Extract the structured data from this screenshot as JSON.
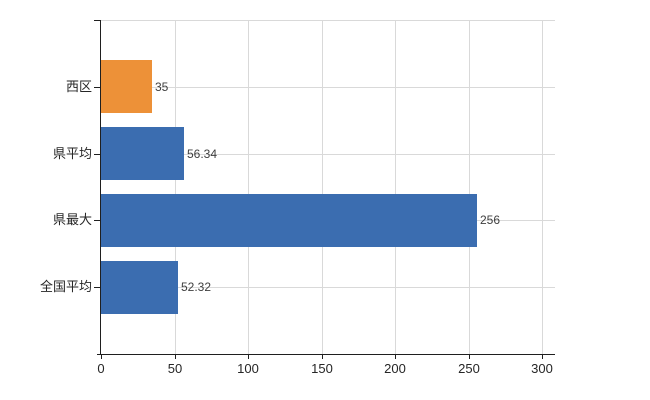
{
  "chart": {
    "background_color": "#ffffff",
    "axis_color": "#1f1f1f",
    "grid_color": "#d9d9d9",
    "tick_label_color": "#262626",
    "value_label_color": "#3f3f3f"
  },
  "chart_data": {
    "type": "bar",
    "orientation": "horizontal",
    "categories": [
      "西区",
      "県平均",
      "県最大",
      "全国平均"
    ],
    "values": [
      35,
      56.34,
      256,
      52.32
    ],
    "value_labels": [
      "35",
      "56.34",
      "256",
      "52.32"
    ],
    "bar_colors": [
      "#ed9138",
      "#3b6db0",
      "#3b6db0",
      "#3b6db0"
    ],
    "x_tick_labels": [
      "0",
      "50",
      "100",
      "150",
      "200",
      "250",
      "300"
    ],
    "x_tick_values": [
      0,
      50,
      100,
      150,
      200,
      250,
      300
    ],
    "xlim": [
      0,
      309
    ],
    "grid": true,
    "legend_position": "none",
    "title": ""
  }
}
